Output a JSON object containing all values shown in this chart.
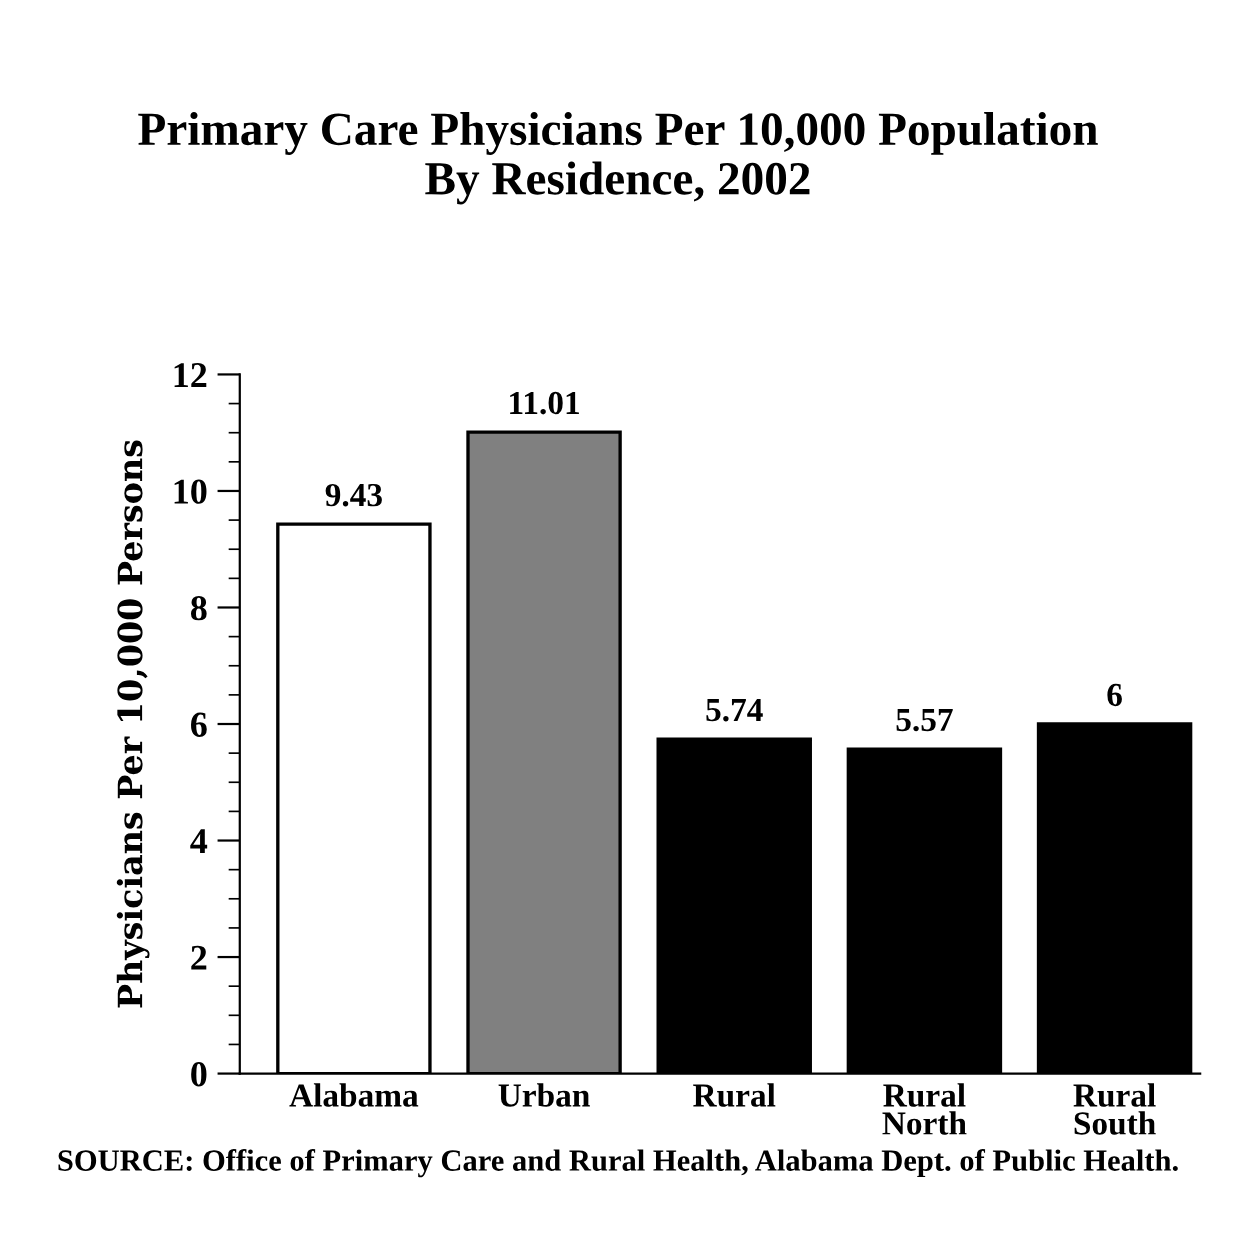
{
  "chart_data": {
    "type": "bar",
    "title": "Primary Care Physicians Per 10,000 Population\nBy Residence, 2002",
    "categories": [
      "Alabama",
      "Urban",
      "Rural",
      "Rural\nNorth",
      "Rural\nSouth"
    ],
    "values": [
      9.43,
      11.01,
      5.74,
      5.57,
      6
    ],
    "colors": [
      "#ffffff",
      "#808080",
      "#000000",
      "#000000",
      "#000000"
    ],
    "value_labels": [
      "9.43",
      "11.01",
      "5.74",
      "5.57",
      "6"
    ],
    "ylabel": "Physicians Per 10,000 Persons",
    "ylim": [
      0,
      12
    ],
    "yticks": [
      0,
      2,
      4,
      6,
      8,
      10,
      12
    ],
    "grid": false,
    "legend": false,
    "annotations": [
      "SOURCE: Office of Primary Care and Rural Health, Alabama Dept. of Public Health."
    ]
  }
}
